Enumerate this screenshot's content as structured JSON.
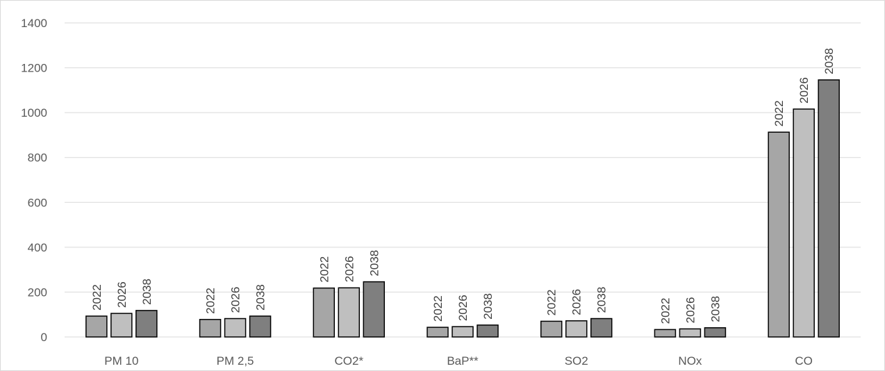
{
  "chart_data": {
    "type": "bar",
    "categories": [
      "PM 10",
      "PM 2,5",
      "CO2*",
      "BaP**",
      "SO2",
      "NOx",
      "CO"
    ],
    "series": [
      {
        "name": "2022",
        "color": "#a6a6a6",
        "values": [
          93,
          78,
          218,
          43,
          70,
          33,
          913
        ]
      },
      {
        "name": "2026",
        "color": "#bfbfbf",
        "values": [
          105,
          82,
          219,
          46,
          72,
          36,
          1016
        ]
      },
      {
        "name": "2038",
        "color": "#7f7f7f",
        "values": [
          118,
          93,
          246,
          53,
          82,
          41,
          1146
        ]
      }
    ],
    "ylim": [
      0,
      1400
    ],
    "y_ticks": [
      "0",
      "200",
      "400",
      "600",
      "800",
      "1000",
      "1200",
      "1400"
    ],
    "grid": true,
    "data_labels": "series name, rotated vertical, above each bar",
    "bar_outline_color": "#000000",
    "gridline_color": "#d9d9d9"
  }
}
